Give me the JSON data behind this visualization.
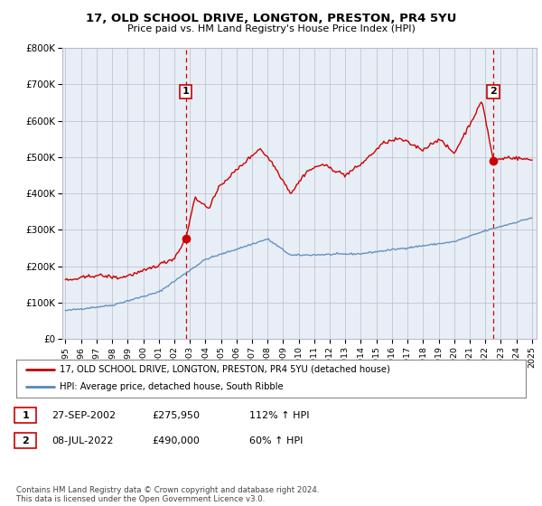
{
  "title": "17, OLD SCHOOL DRIVE, LONGTON, PRESTON, PR4 5YU",
  "subtitle": "Price paid vs. HM Land Registry's House Price Index (HPI)",
  "ylim": [
    0,
    800000
  ],
  "yticks": [
    0,
    100000,
    200000,
    300000,
    400000,
    500000,
    600000,
    700000,
    800000
  ],
  "ytick_labels": [
    "£0",
    "£100K",
    "£200K",
    "£300K",
    "£400K",
    "£500K",
    "£600K",
    "£700K",
    "£800K"
  ],
  "hpi_color": "#5588bb",
  "price_color": "#cc0000",
  "chart_bg": "#e8eef5",
  "marker1_date": 2002.74,
  "marker1_value": 275950,
  "marker1_label": "1",
  "marker2_date": 2022.52,
  "marker2_value": 490000,
  "marker2_label": "2",
  "legend_line1": "17, OLD SCHOOL DRIVE, LONGTON, PRESTON, PR4 5YU (detached house)",
  "legend_line2": "HPI: Average price, detached house, South Ribble",
  "footer": "Contains HM Land Registry data © Crown copyright and database right 2024.\nThis data is licensed under the Open Government Licence v3.0.",
  "background_color": "#ffffff",
  "grid_color": "#bbbbcc"
}
